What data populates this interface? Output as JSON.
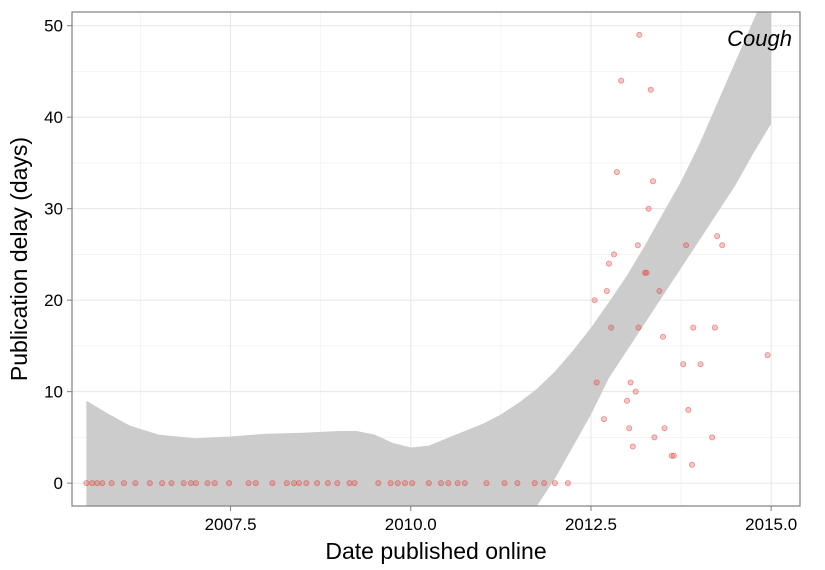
{
  "chart_data": {
    "type": "scatter",
    "title": "",
    "panel_label": "Cough",
    "xlabel": "Date published online",
    "ylabel": "Publication delay (days)",
    "xlim": [
      2005.3,
      2015.4
    ],
    "ylim": [
      -2.5,
      51.5
    ],
    "x_ticks": [
      2007.5,
      2010.0,
      2012.5,
      2015.0
    ],
    "x_tick_labels": [
      "2007.5",
      "2010.0",
      "2012.5",
      "2015.0"
    ],
    "y_ticks": [
      0,
      10,
      20,
      30,
      40,
      50
    ],
    "y_tick_labels": [
      "0",
      "10",
      "20",
      "30",
      "40",
      "50"
    ],
    "grid": true,
    "point_color": "#e0443e",
    "band_color": "#cccccc",
    "points": [
      {
        "x": 2005.5,
        "y": 0
      },
      {
        "x": 2005.58,
        "y": 0
      },
      {
        "x": 2005.65,
        "y": 0
      },
      {
        "x": 2005.72,
        "y": 0
      },
      {
        "x": 2005.85,
        "y": 0
      },
      {
        "x": 2006.02,
        "y": 0
      },
      {
        "x": 2006.18,
        "y": 0
      },
      {
        "x": 2006.38,
        "y": 0
      },
      {
        "x": 2006.55,
        "y": 0
      },
      {
        "x": 2006.68,
        "y": 0
      },
      {
        "x": 2006.85,
        "y": 0
      },
      {
        "x": 2006.95,
        "y": 0
      },
      {
        "x": 2007.02,
        "y": 0
      },
      {
        "x": 2007.18,
        "y": 0
      },
      {
        "x": 2007.28,
        "y": 0
      },
      {
        "x": 2007.48,
        "y": 0
      },
      {
        "x": 2007.75,
        "y": 0
      },
      {
        "x": 2007.85,
        "y": 0
      },
      {
        "x": 2008.08,
        "y": 0
      },
      {
        "x": 2008.28,
        "y": 0
      },
      {
        "x": 2008.38,
        "y": 0
      },
      {
        "x": 2008.45,
        "y": 0
      },
      {
        "x": 2008.55,
        "y": 0
      },
      {
        "x": 2008.7,
        "y": 0
      },
      {
        "x": 2008.85,
        "y": 0
      },
      {
        "x": 2008.98,
        "y": 0
      },
      {
        "x": 2009.15,
        "y": 0
      },
      {
        "x": 2009.22,
        "y": 0
      },
      {
        "x": 2009.55,
        "y": 0
      },
      {
        "x": 2009.72,
        "y": 0
      },
      {
        "x": 2009.82,
        "y": 0
      },
      {
        "x": 2009.92,
        "y": 0
      },
      {
        "x": 2010.02,
        "y": 0
      },
      {
        "x": 2010.25,
        "y": 0
      },
      {
        "x": 2010.42,
        "y": 0
      },
      {
        "x": 2010.52,
        "y": 0
      },
      {
        "x": 2010.65,
        "y": 0
      },
      {
        "x": 2010.75,
        "y": 0
      },
      {
        "x": 2011.05,
        "y": 0
      },
      {
        "x": 2011.3,
        "y": 0
      },
      {
        "x": 2011.48,
        "y": 0
      },
      {
        "x": 2011.72,
        "y": 0
      },
      {
        "x": 2011.85,
        "y": 0
      },
      {
        "x": 2012.0,
        "y": 0
      },
      {
        "x": 2012.18,
        "y": 0
      },
      {
        "x": 2012.55,
        "y": 20
      },
      {
        "x": 2012.58,
        "y": 11
      },
      {
        "x": 2012.68,
        "y": 7
      },
      {
        "x": 2012.72,
        "y": 21
      },
      {
        "x": 2012.75,
        "y": 24
      },
      {
        "x": 2012.78,
        "y": 17
      },
      {
        "x": 2012.82,
        "y": 25
      },
      {
        "x": 2012.86,
        "y": 34
      },
      {
        "x": 2012.92,
        "y": 44
      },
      {
        "x": 2013.0,
        "y": 9
      },
      {
        "x": 2013.03,
        "y": 6
      },
      {
        "x": 2013.05,
        "y": 11
      },
      {
        "x": 2013.08,
        "y": 4
      },
      {
        "x": 2013.12,
        "y": 10
      },
      {
        "x": 2013.15,
        "y": 26
      },
      {
        "x": 2013.16,
        "y": 17
      },
      {
        "x": 2013.17,
        "y": 49
      },
      {
        "x": 2013.25,
        "y": 23
      },
      {
        "x": 2013.27,
        "y": 23
      },
      {
        "x": 2013.3,
        "y": 30
      },
      {
        "x": 2013.33,
        "y": 43
      },
      {
        "x": 2013.36,
        "y": 33
      },
      {
        "x": 2013.38,
        "y": 5
      },
      {
        "x": 2013.45,
        "y": 21
      },
      {
        "x": 2013.5,
        "y": 16
      },
      {
        "x": 2013.52,
        "y": 6
      },
      {
        "x": 2013.62,
        "y": 3
      },
      {
        "x": 2013.65,
        "y": 3
      },
      {
        "x": 2013.78,
        "y": 13
      },
      {
        "x": 2013.82,
        "y": 26
      },
      {
        "x": 2013.85,
        "y": 8
      },
      {
        "x": 2013.9,
        "y": 2
      },
      {
        "x": 2013.92,
        "y": 17
      },
      {
        "x": 2014.02,
        "y": 13
      },
      {
        "x": 2014.18,
        "y": 5
      },
      {
        "x": 2014.22,
        "y": 17
      },
      {
        "x": 2014.25,
        "y": 27
      },
      {
        "x": 2014.32,
        "y": 26
      },
      {
        "x": 2014.95,
        "y": 14
      }
    ],
    "confidence_band": {
      "x": [
        2005.5,
        2005.8,
        2006.1,
        2006.5,
        2007.0,
        2007.5,
        2008.0,
        2008.5,
        2009.0,
        2009.25,
        2009.5,
        2009.75,
        2010.0,
        2010.25,
        2010.5,
        2010.75,
        2011.0,
        2011.25,
        2011.5,
        2011.75,
        2012.0,
        2012.25,
        2012.5,
        2012.75,
        2013.0,
        2013.25,
        2013.5,
        2013.75,
        2014.0,
        2014.25,
        2014.5,
        2014.75,
        2015.0
      ],
      "upper": [
        9.0,
        7.6,
        6.3,
        5.3,
        4.9,
        5.1,
        5.4,
        5.5,
        5.7,
        5.7,
        5.3,
        4.4,
        3.9,
        4.1,
        4.9,
        5.7,
        6.5,
        7.5,
        8.8,
        10.3,
        12.2,
        14.5,
        17.0,
        19.8,
        22.7,
        26.0,
        29.5,
        33.0,
        37.0,
        41.5,
        46.0,
        50.5,
        55.0
      ],
      "lower": [
        -3.0,
        -3.0,
        -3.0,
        -3.0,
        -3.0,
        -3.0,
        -3.0,
        -3.0,
        -3.0,
        -3.0,
        -3.0,
        -3.0,
        -3.0,
        -3.0,
        -3.0,
        -3.0,
        -3.0,
        -3.0,
        -3.0,
        -2.5,
        0.5,
        4.0,
        7.5,
        11.5,
        14.5,
        17.5,
        20.5,
        23.5,
        26.5,
        29.5,
        32.5,
        36.0,
        39.3
      ]
    }
  }
}
